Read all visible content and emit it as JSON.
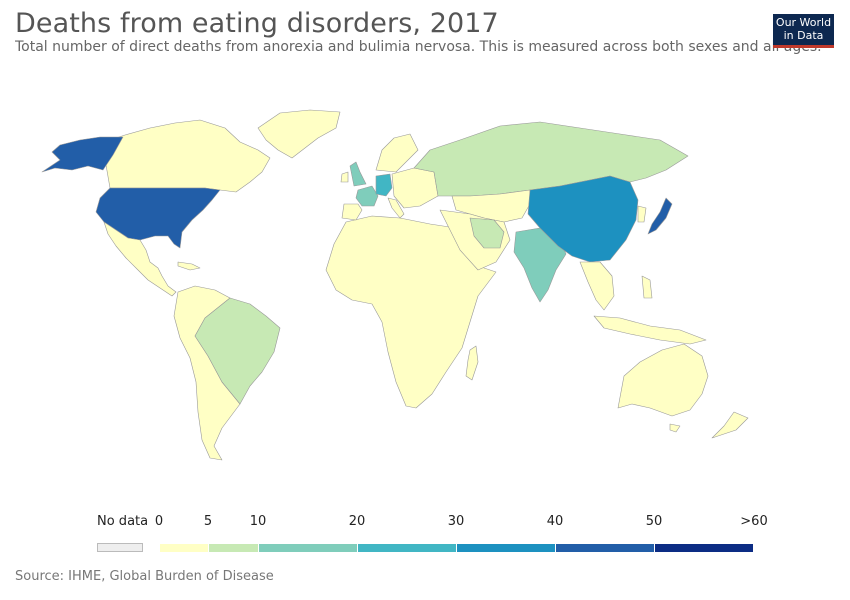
{
  "title": "Deaths from eating disorders, 2017",
  "subtitle": "Total number of direct deaths from anorexia and bulimia nervosa. This is measured across both sexes and all ages.",
  "logo": {
    "line1": "Our World",
    "line2": "in Data"
  },
  "source": "Source: IHME, Global Burden of Disease",
  "legend": {
    "nodata_label": "No data",
    "nodata_color": "#eeeeee",
    "ticks": [
      "0",
      "5",
      "10",
      "20",
      "30",
      "40",
      "50",
      ">60"
    ],
    "bins": [
      {
        "range": "0-5",
        "color": "#ffffc5"
      },
      {
        "range": "5-10",
        "color": "#c7e9b4"
      },
      {
        "range": "10-20",
        "color": "#7fcdbb"
      },
      {
        "range": "20-30",
        "color": "#41b6c4"
      },
      {
        "range": "30-40",
        "color": "#1d91c0"
      },
      {
        "range": "40-50",
        "color": "#225ea8"
      },
      {
        "range": "50-60",
        "color": "#0c2c84"
      }
    ]
  },
  "colors": {
    "land_low": "#ffffc5",
    "border": "#aaaaaa",
    "ocean": "#ffffff"
  }
}
